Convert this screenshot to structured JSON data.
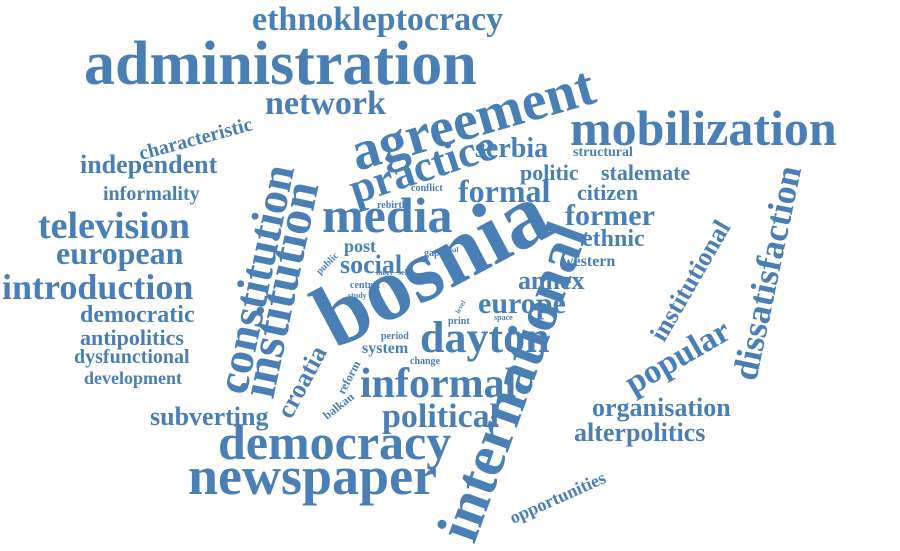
{
  "colors": {
    "word": "#4a7fb5",
    "background": "#ffffff"
  },
  "words": {
    "ethnokleptocracy": "ethnokleptocracy",
    "administration": "administration",
    "network": "network",
    "agreement": "agreement",
    "mobilization": "mobilization",
    "characteristic": "characteristic",
    "serbia": "serbia",
    "structural": "structural",
    "independent": "independent",
    "practice": "practice",
    "politic": "politic",
    "stalemate": "stalemate",
    "informality": "informality",
    "formal": "formal",
    "conflict": "conflict",
    "citizen": "citizen",
    "rebirth": "rebirth",
    "television": "television",
    "media": "media",
    "former": "former",
    "european": "european",
    "public": "public",
    "post": "post",
    "gap": "gap",
    "goal": "goal",
    "ethnic": "ethnic",
    "social": "social",
    "western": "western",
    "introduction": "introduction",
    "more": "more",
    "self": "self",
    "annex": "annex",
    "central": "central",
    "study": "study",
    "europe": "europe",
    "democratic": "democratic",
    "level": "level",
    "print": "print",
    "space": "space",
    "antipolitics": "antipolitics",
    "dayton": "dayton",
    "period": "period",
    "dysfunctional": "dysfunctional",
    "system": "system",
    "change": "change",
    "development": "development",
    "informal": "informal",
    "subverting": "subverting",
    "political": "political",
    "organisation": "organisation",
    "alterpolitics": "alterpolitics",
    "democracy": "democracy",
    "newspaper": "newspaper",
    "opportunities": "opportunities",
    "constitution": "constitution",
    "institution": "institution",
    "croatia": "croatia",
    "balkan": "balkan",
    "reform": "reform",
    "bosnia": "bosnia",
    "international": "international",
    "institutional": "institutional",
    "popular": "popular",
    "dissatisfaction": "dissatisfaction"
  }
}
